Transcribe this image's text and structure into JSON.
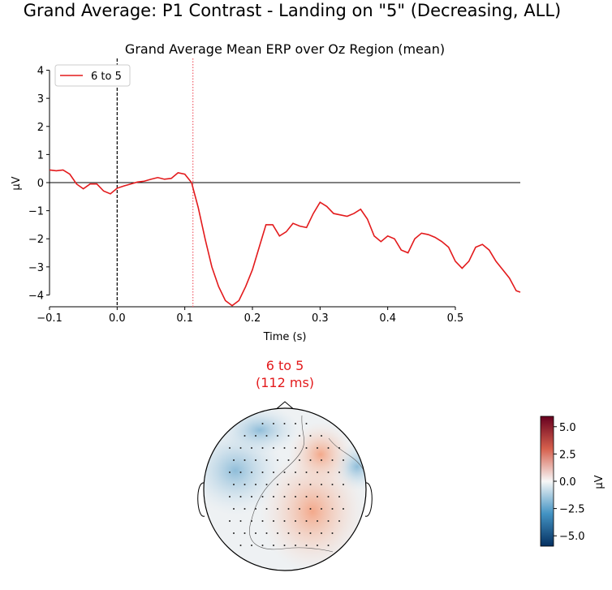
{
  "title": "Grand Average: P1 Contrast - Landing on \"5\" (Decreasing, ALL)",
  "chart_data": [
    {
      "type": "line",
      "title": "Grand Average Mean ERP over Oz Region (mean)",
      "xlabel": "Time (s)",
      "ylabel": "µV",
      "x": [
        -0.1,
        -0.09,
        -0.08,
        -0.07,
        -0.06,
        -0.05,
        -0.04,
        -0.03,
        -0.02,
        -0.01,
        0.0,
        0.01,
        0.02,
        0.03,
        0.04,
        0.05,
        0.06,
        0.07,
        0.08,
        0.09,
        0.1,
        0.11,
        0.12,
        0.13,
        0.14,
        0.15,
        0.16,
        0.17,
        0.18,
        0.19,
        0.2,
        0.21,
        0.22,
        0.23,
        0.24,
        0.25,
        0.26,
        0.27,
        0.28,
        0.29,
        0.3,
        0.31,
        0.32,
        0.33,
        0.34,
        0.35,
        0.36,
        0.37,
        0.38,
        0.39,
        0.4,
        0.41,
        0.42,
        0.43,
        0.44,
        0.45,
        0.46,
        0.47,
        0.48,
        0.49,
        0.5,
        0.51,
        0.52,
        0.53,
        0.54,
        0.55,
        0.56,
        0.57,
        0.58,
        0.59,
        0.596
      ],
      "series": [
        {
          "name": "6 to 5",
          "color": "#e31a1c",
          "values": [
            0.45,
            0.42,
            0.45,
            0.3,
            -0.05,
            -0.22,
            -0.05,
            -0.05,
            -0.3,
            -0.4,
            -0.2,
            -0.12,
            -0.05,
            0.02,
            0.05,
            0.12,
            0.18,
            0.12,
            0.15,
            0.35,
            0.3,
            0.0,
            -0.9,
            -2.0,
            -3.0,
            -3.7,
            -4.2,
            -4.38,
            -4.2,
            -3.7,
            -3.1,
            -2.3,
            -1.5,
            -1.5,
            -1.9,
            -1.75,
            -1.45,
            -1.55,
            -1.6,
            -1.1,
            -0.7,
            -0.85,
            -1.1,
            -1.15,
            -1.2,
            -1.1,
            -0.95,
            -1.3,
            -1.9,
            -2.1,
            -1.9,
            -2.0,
            -2.4,
            -2.5,
            -2.0,
            -1.8,
            -1.85,
            -1.95,
            -2.1,
            -2.3,
            -2.8,
            -3.05,
            -2.8,
            -2.3,
            -2.2,
            -2.4,
            -2.8,
            -3.1,
            -3.4,
            -3.85,
            -3.9
          ]
        }
      ],
      "xlim": [
        -0.1,
        0.596
      ],
      "ylim": [
        -4.42,
        4.42
      ],
      "xticks": [
        {
          "value": -0.1,
          "label": "−0.1"
        },
        {
          "value": 0,
          "label": "0.0"
        },
        0.1,
        0.2,
        0.3,
        0.4,
        0.5
      ],
      "yticks": [
        {
          "value": -4,
          "label": "−4"
        },
        {
          "value": -3,
          "label": "−3"
        },
        {
          "value": -2,
          "label": "−2"
        },
        {
          "value": -1,
          "label": "−1"
        },
        0,
        1,
        2,
        3,
        4
      ],
      "hline": 0,
      "vlines": [
        {
          "x": 0,
          "color": "#000000",
          "style": "dashed"
        },
        {
          "x": 0.112,
          "color": "#f0606a",
          "style": "dotted"
        }
      ],
      "legend": "upper left"
    },
    {
      "type": "topomap",
      "title": "6 to 5",
      "subtitle": "(112 ms)",
      "title_color": "#e31a1c",
      "colorbar": {
        "label": "µV",
        "lim": [
          -5.95,
          5.95
        ],
        "ticks": [
          {
            "value": 5,
            "label": "5.0"
          },
          {
            "value": 2.5,
            "label": "2.5"
          },
          {
            "value": 0,
            "label": "0.0"
          },
          {
            "value": -2.5,
            "label": "−2.5"
          },
          {
            "value": -5,
            "label": "−5.0"
          }
        ],
        "colors": [
          "#053061",
          "#4393c3",
          "#f7f7f7",
          "#d6604d",
          "#67001f"
        ]
      }
    }
  ]
}
